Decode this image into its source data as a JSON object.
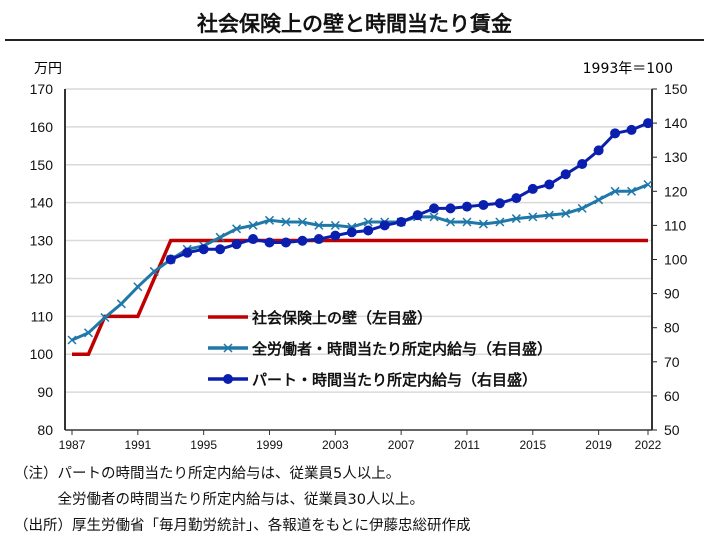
{
  "title": "社会保険上の壁と時間当たり賃金",
  "chart_data": {
    "type": "line",
    "title": "社会保険上の壁と時間当たり賃金",
    "left_axis": {
      "label": "万円",
      "range": [
        80,
        170
      ],
      "ticks": [
        80,
        90,
        100,
        110,
        120,
        130,
        140,
        150,
        160,
        170
      ]
    },
    "right_axis": {
      "label": "1993年＝100",
      "range": [
        50,
        150
      ],
      "ticks": [
        50,
        60,
        70,
        80,
        90,
        100,
        110,
        120,
        130,
        140,
        150
      ]
    },
    "x_ticks": [
      "1987",
      "1991",
      "1995",
      "1999",
      "2003",
      "2007",
      "2011",
      "2015",
      "2019",
      "2022"
    ],
    "grid": true,
    "legend_position": "center",
    "series": [
      {
        "name": "社会保険上の壁（左目盛）",
        "axis": "left",
        "color": "#c00000",
        "marker": "none",
        "x": [
          1987,
          1988,
          1989,
          1990,
          1991,
          1992,
          1993,
          2022
        ],
        "y": [
          100,
          100,
          110,
          110,
          110,
          120,
          130,
          130
        ]
      },
      {
        "name": "全労働者・時間当たり所定内給与（右目盛）",
        "axis": "right",
        "color": "#1f78a8",
        "marker": "x",
        "x": [
          1987,
          1988,
          1989,
          1990,
          1991,
          1992,
          1993,
          1994,
          1995,
          1996,
          1997,
          1998,
          1999,
          2000,
          2001,
          2002,
          2003,
          2004,
          2005,
          2006,
          2007,
          2008,
          2009,
          2010,
          2011,
          2012,
          2013,
          2014,
          2015,
          2016,
          2017,
          2018,
          2019,
          2020,
          2021,
          2022
        ],
        "y": [
          76.4,
          78.5,
          83,
          87,
          92,
          96.5,
          100,
          103,
          104,
          106.5,
          109,
          110,
          111.5,
          111,
          111,
          110,
          110,
          109.5,
          111,
          111,
          111,
          112.5,
          112.5,
          111,
          111,
          110.4,
          111,
          112,
          112.5,
          113,
          113.5,
          115,
          117.5,
          120,
          120,
          122
        ]
      },
      {
        "name": "パート・時間当たり所定内給与（右目盛）",
        "axis": "right",
        "color": "#0a1fae",
        "marker": "circle",
        "x": [
          1993,
          1994,
          1995,
          1996,
          1997,
          1998,
          1999,
          2000,
          2001,
          2002,
          2003,
          2004,
          2005,
          2006,
          2007,
          2008,
          2009,
          2010,
          2011,
          2012,
          2013,
          2014,
          2015,
          2016,
          2017,
          2018,
          2019,
          2020,
          2021,
          2022
        ],
        "y": [
          100,
          102,
          103,
          103,
          104.5,
          106,
          105,
          105,
          105.5,
          106,
          107,
          108,
          108.5,
          110,
          111,
          113,
          115,
          115,
          115.5,
          116,
          116.5,
          118,
          120.7,
          122,
          125,
          128,
          132,
          137,
          138,
          140
        ]
      }
    ]
  },
  "notes": [
    "（注）パートの時間当たり所定内給与は、従業員5人以上。",
    "　　　全労働者の時間当たり所定内給与は、従業員30人以上。",
    "（出所）厚生労働省「毎月勤労統計」、各報道をもとに伊藤忠総研作成"
  ]
}
